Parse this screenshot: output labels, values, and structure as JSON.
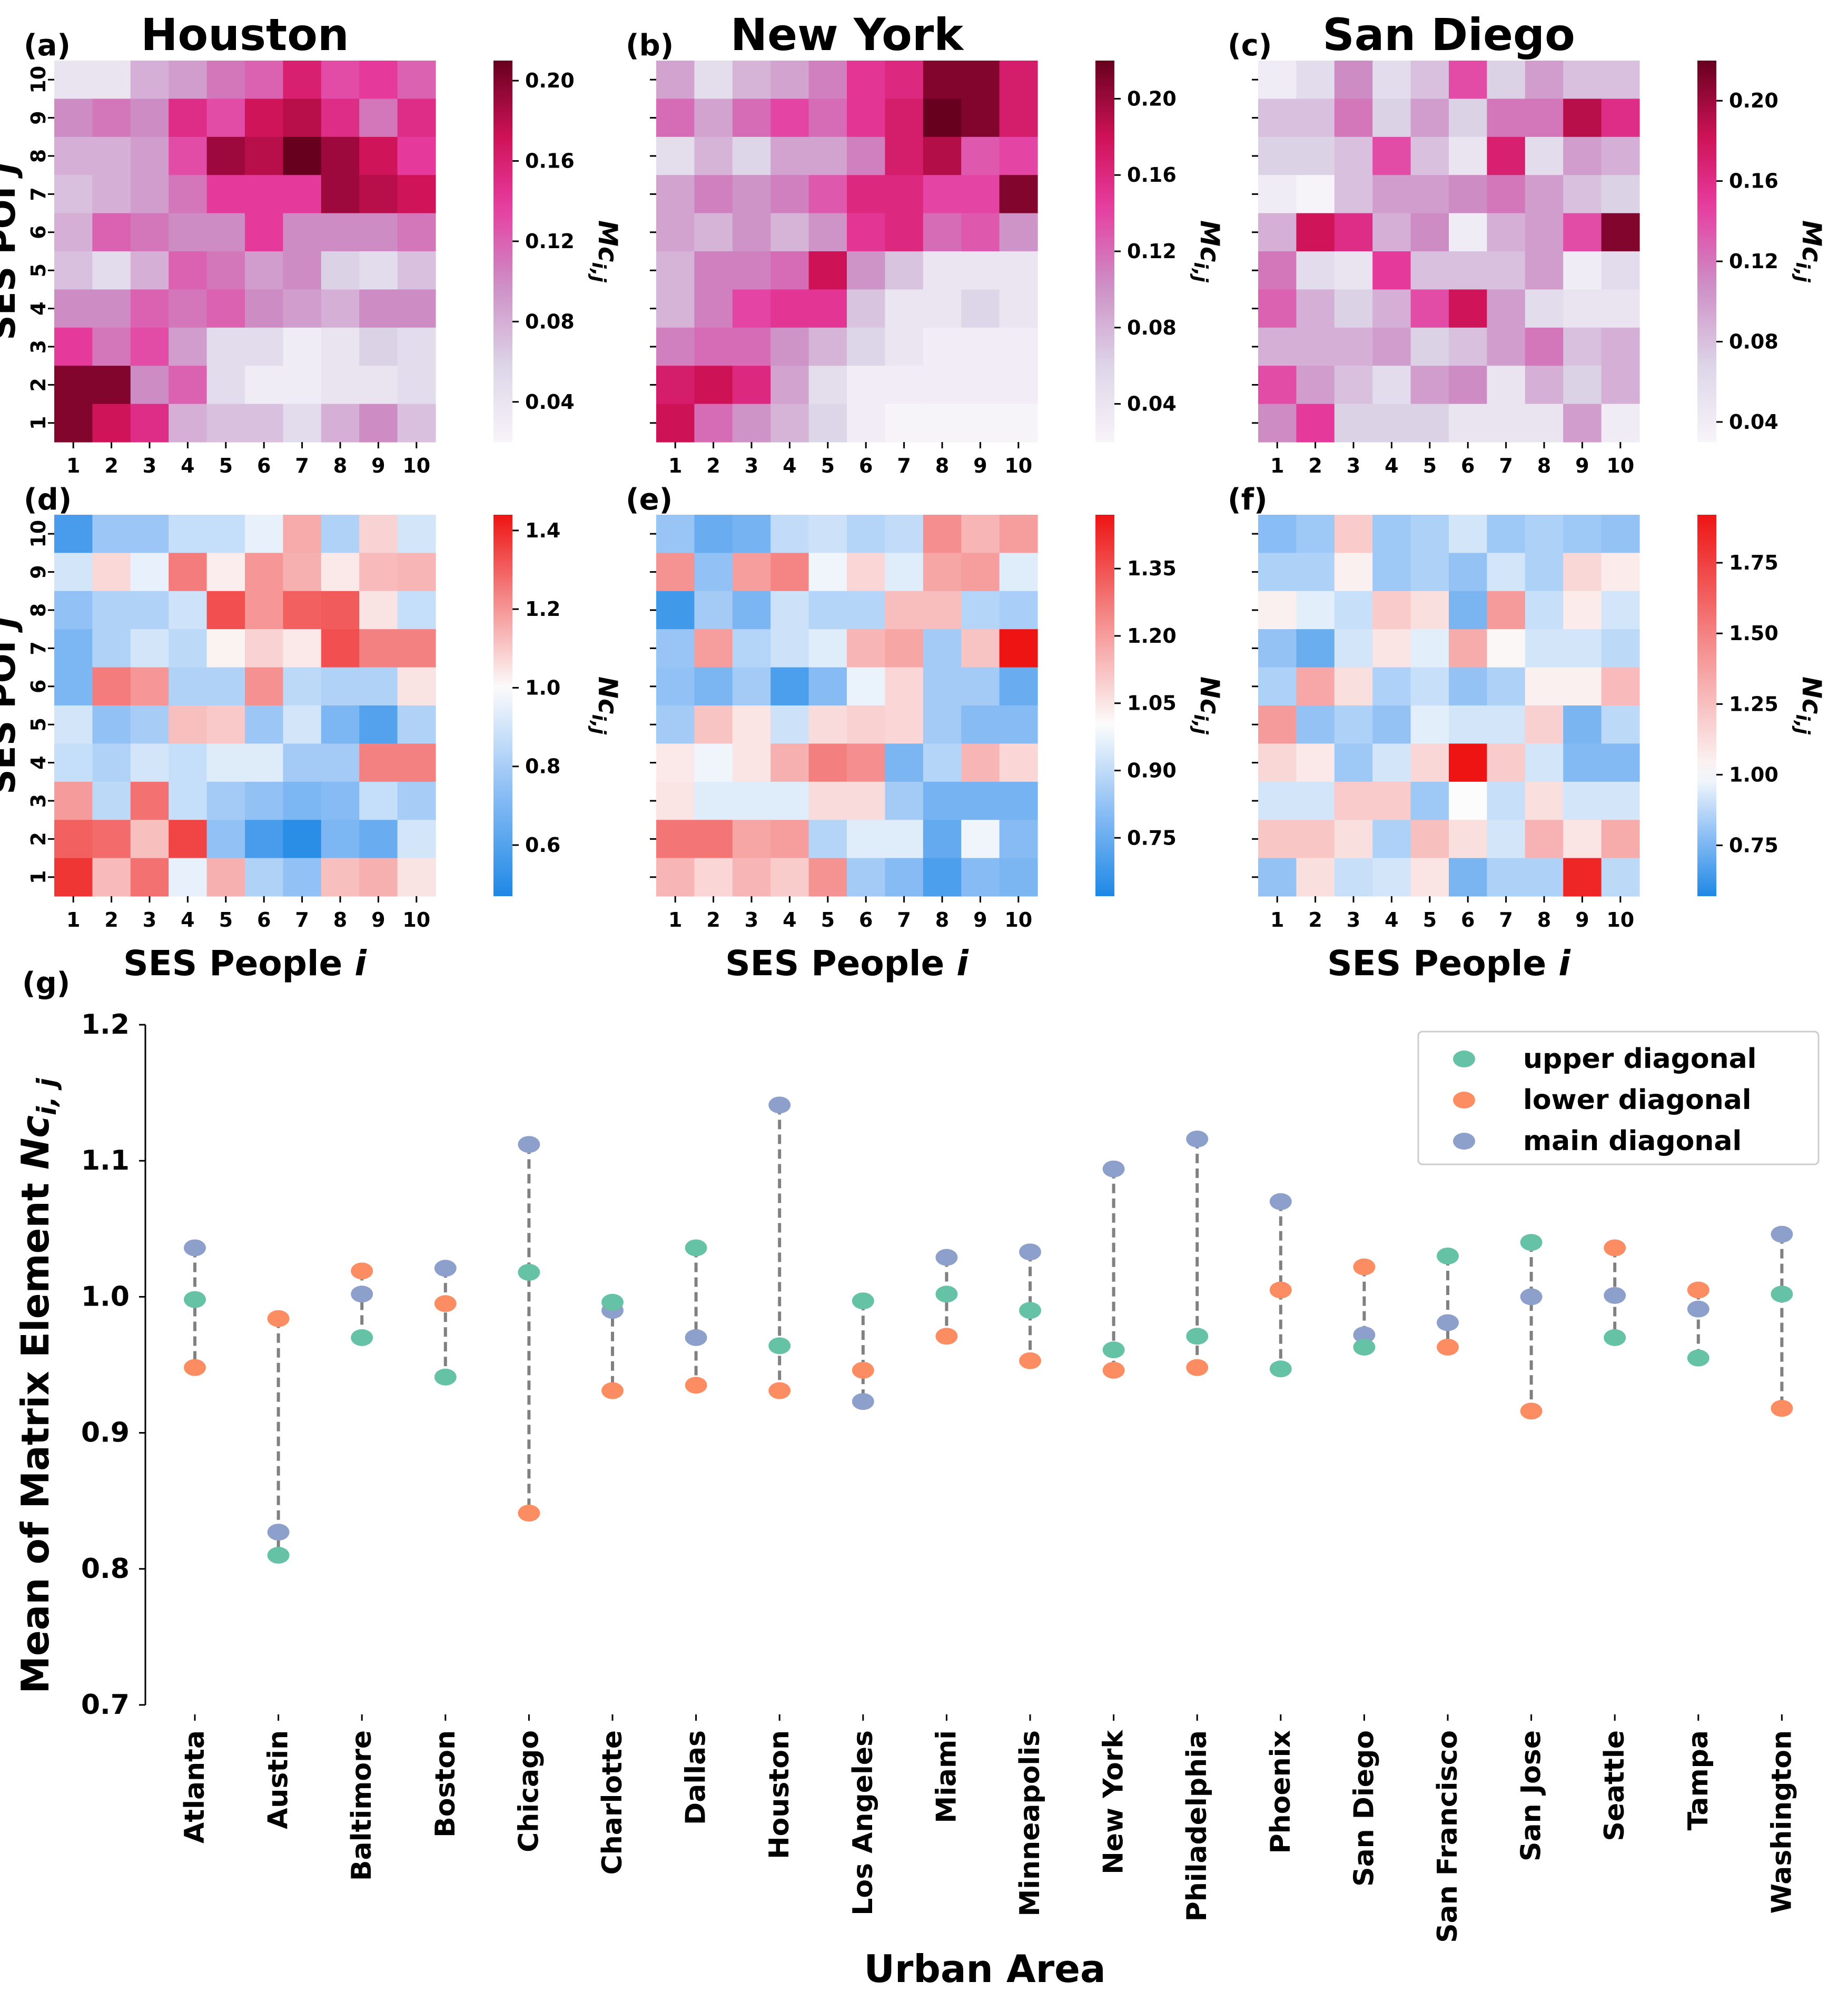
{
  "heatmaps": [
    {
      "label": "(a)",
      "city": "Houston",
      "scale": "pink",
      "cbar_label": "Mc_{i,j}",
      "vmin": 0.02,
      "vmax": 0.21,
      "cbar_ticks": [
        "0.04",
        "0.08",
        "0.12",
        "0.16",
        "0.20"
      ],
      "cbar_tick_values": [
        0.04,
        0.08,
        0.12,
        0.16,
        0.2
      ],
      "show_ylabel": true,
      "show_yticks": true,
      "rows": [
        [
          0.04,
          0.04,
          0.08,
          0.09,
          0.11,
          0.12,
          0.16,
          0.13,
          0.14,
          0.12
        ],
        [
          0.1,
          0.11,
          0.1,
          0.15,
          0.13,
          0.17,
          0.18,
          0.15,
          0.11,
          0.15
        ],
        [
          0.08,
          0.08,
          0.09,
          0.13,
          0.19,
          0.18,
          0.21,
          0.19,
          0.17,
          0.14
        ],
        [
          0.07,
          0.08,
          0.09,
          0.11,
          0.14,
          0.14,
          0.14,
          0.19,
          0.18,
          0.17
        ],
        [
          0.08,
          0.12,
          0.11,
          0.1,
          0.1,
          0.14,
          0.1,
          0.1,
          0.1,
          0.11
        ],
        [
          0.07,
          0.05,
          0.08,
          0.12,
          0.11,
          0.09,
          0.1,
          0.06,
          0.05,
          0.07
        ],
        [
          0.1,
          0.1,
          0.12,
          0.11,
          0.12,
          0.1,
          0.09,
          0.08,
          0.1,
          0.1
        ],
        [
          0.14,
          0.11,
          0.13,
          0.09,
          0.05,
          0.05,
          0.03,
          0.04,
          0.06,
          0.05
        ],
        [
          0.2,
          0.2,
          0.1,
          0.12,
          0.05,
          0.03,
          0.03,
          0.04,
          0.04,
          0.05
        ],
        [
          0.2,
          0.17,
          0.15,
          0.08,
          0.07,
          0.07,
          0.05,
          0.08,
          0.1,
          0.07
        ]
      ]
    },
    {
      "label": "(b)",
      "city": "New York",
      "scale": "pink",
      "cbar_label": "Mc_{i,j}",
      "vmin": 0.02,
      "vmax": 0.22,
      "cbar_ticks": [
        "0.04",
        "0.08",
        "0.12",
        "0.16",
        "0.20"
      ],
      "cbar_tick_values": [
        0.04,
        0.08,
        0.12,
        0.16,
        0.2
      ],
      "show_ylabel": false,
      "show_yticks": false,
      "rows": [
        [
          0.09,
          0.05,
          0.08,
          0.09,
          0.11,
          0.15,
          0.16,
          0.21,
          0.21,
          0.17
        ],
        [
          0.12,
          0.09,
          0.12,
          0.14,
          0.12,
          0.15,
          0.17,
          0.22,
          0.21,
          0.17
        ],
        [
          0.05,
          0.08,
          0.06,
          0.09,
          0.09,
          0.11,
          0.17,
          0.19,
          0.13,
          0.14
        ],
        [
          0.09,
          0.11,
          0.1,
          0.11,
          0.13,
          0.16,
          0.16,
          0.14,
          0.14,
          0.21
        ],
        [
          0.09,
          0.08,
          0.1,
          0.08,
          0.1,
          0.15,
          0.16,
          0.12,
          0.13,
          0.1
        ],
        [
          0.08,
          0.11,
          0.11,
          0.12,
          0.18,
          0.1,
          0.07,
          0.04,
          0.04,
          0.04
        ],
        [
          0.08,
          0.11,
          0.14,
          0.15,
          0.15,
          0.07,
          0.04,
          0.04,
          0.06,
          0.04
        ],
        [
          0.11,
          0.12,
          0.12,
          0.1,
          0.08,
          0.06,
          0.04,
          0.03,
          0.03,
          0.03
        ],
        [
          0.17,
          0.18,
          0.16,
          0.09,
          0.05,
          0.03,
          0.03,
          0.03,
          0.03,
          0.03
        ],
        [
          0.18,
          0.12,
          0.1,
          0.08,
          0.06,
          0.03,
          0.02,
          0.02,
          0.02,
          0.02
        ]
      ]
    },
    {
      "label": "(c)",
      "city": "San Diego",
      "scale": "pink",
      "cbar_label": "Mc_{i,j}",
      "vmin": 0.03,
      "vmax": 0.22,
      "cbar_ticks": [
        "0.04",
        "0.08",
        "0.12",
        "0.16",
        "0.20"
      ],
      "cbar_tick_values": [
        0.04,
        0.08,
        0.12,
        0.16,
        0.2
      ],
      "show_ylabel": false,
      "show_yticks": false,
      "rows": [
        [
          0.04,
          0.06,
          0.11,
          0.06,
          0.08,
          0.14,
          0.07,
          0.1,
          0.08,
          0.08
        ],
        [
          0.08,
          0.08,
          0.12,
          0.07,
          0.1,
          0.07,
          0.12,
          0.12,
          0.19,
          0.16
        ],
        [
          0.07,
          0.07,
          0.08,
          0.14,
          0.08,
          0.05,
          0.17,
          0.06,
          0.1,
          0.09
        ],
        [
          0.04,
          0.03,
          0.08,
          0.1,
          0.1,
          0.11,
          0.12,
          0.1,
          0.08,
          0.07
        ],
        [
          0.09,
          0.18,
          0.16,
          0.09,
          0.11,
          0.04,
          0.09,
          0.1,
          0.14,
          0.21
        ],
        [
          0.12,
          0.06,
          0.05,
          0.15,
          0.08,
          0.08,
          0.08,
          0.1,
          0.04,
          0.06
        ],
        [
          0.13,
          0.09,
          0.07,
          0.09,
          0.14,
          0.18,
          0.1,
          0.06,
          0.05,
          0.05
        ],
        [
          0.09,
          0.09,
          0.09,
          0.1,
          0.07,
          0.08,
          0.1,
          0.12,
          0.08,
          0.09
        ],
        [
          0.14,
          0.1,
          0.08,
          0.06,
          0.1,
          0.11,
          0.05,
          0.09,
          0.07,
          0.09
        ],
        [
          0.11,
          0.15,
          0.07,
          0.07,
          0.07,
          0.05,
          0.05,
          0.05,
          0.1,
          0.04
        ]
      ]
    },
    {
      "label": "(d)",
      "city": "",
      "scale": "diverging",
      "cbar_label": "Nc_{i,j}",
      "vmin": 0.47,
      "vmax": 1.44,
      "vcenter": 1.0,
      "cbar_ticks": [
        "0.6",
        "0.8",
        "1.0",
        "1.2",
        "1.4"
      ],
      "cbar_tick_values": [
        0.6,
        0.8,
        1.0,
        1.2,
        1.4
      ],
      "show_ylabel": true,
      "show_yticks": true,
      "rows": [
        [
          0.57,
          0.77,
          0.77,
          0.87,
          0.87,
          0.95,
          1.16,
          0.82,
          1.08,
          0.9
        ],
        [
          0.9,
          1.07,
          0.95,
          1.25,
          1.03,
          1.2,
          1.15,
          1.04,
          1.13,
          1.14
        ],
        [
          0.75,
          0.82,
          0.82,
          0.89,
          1.33,
          1.2,
          1.3,
          1.31,
          1.05,
          0.87
        ],
        [
          0.7,
          0.82,
          0.9,
          0.85,
          1.02,
          1.08,
          1.04,
          1.33,
          1.24,
          1.24
        ],
        [
          0.7,
          1.25,
          1.2,
          0.82,
          0.82,
          1.21,
          0.85,
          0.82,
          0.82,
          1.05
        ],
        [
          0.9,
          0.75,
          0.8,
          1.12,
          1.1,
          0.77,
          0.9,
          0.7,
          0.6,
          0.82
        ],
        [
          0.87,
          0.82,
          0.9,
          0.87,
          0.93,
          0.93,
          0.79,
          0.79,
          1.24,
          1.24
        ],
        [
          1.19,
          0.85,
          1.27,
          0.87,
          0.79,
          0.75,
          0.7,
          0.72,
          0.87,
          0.8
        ],
        [
          1.3,
          1.28,
          1.12,
          1.35,
          0.75,
          0.57,
          0.5,
          0.7,
          0.65,
          0.9
        ],
        [
          1.38,
          1.13,
          1.27,
          0.95,
          1.15,
          0.82,
          0.75,
          1.12,
          1.15,
          1.05
        ]
      ]
    },
    {
      "label": "(e)",
      "city": "",
      "scale": "diverging",
      "cbar_label": "Nc_{i,j}",
      "vmin": 0.62,
      "vmax": 1.47,
      "vcenter": 1.0,
      "cbar_ticks": [
        "0.75",
        "0.90",
        "1.05",
        "1.20",
        "1.35"
      ],
      "cbar_tick_values": [
        0.75,
        0.9,
        1.05,
        1.2,
        1.35
      ],
      "show_ylabel": false,
      "show_yticks": false,
      "rows": [
        [
          0.83,
          0.75,
          0.77,
          0.9,
          0.92,
          0.88,
          0.9,
          1.23,
          1.15,
          1.2
        ],
        [
          1.22,
          0.82,
          1.2,
          1.25,
          0.98,
          1.08,
          0.95,
          1.18,
          1.2,
          0.95
        ],
        [
          0.68,
          0.85,
          0.78,
          0.92,
          0.88,
          0.88,
          1.13,
          1.13,
          0.88,
          0.86
        ],
        [
          0.83,
          1.2,
          0.88,
          0.92,
          0.95,
          1.15,
          1.18,
          0.85,
          1.12,
          1.47
        ],
        [
          0.82,
          0.78,
          0.85,
          0.7,
          0.8,
          0.97,
          1.08,
          0.85,
          0.85,
          0.75
        ],
        [
          0.85,
          1.12,
          1.05,
          0.92,
          1.07,
          1.09,
          1.08,
          0.85,
          0.8,
          0.8
        ],
        [
          1.04,
          0.98,
          1.05,
          1.16,
          1.26,
          1.23,
          0.78,
          0.88,
          1.15,
          1.08
        ],
        [
          1.05,
          0.95,
          0.95,
          0.95,
          1.07,
          1.07,
          0.85,
          0.77,
          0.77,
          0.77
        ],
        [
          1.28,
          1.28,
          1.18,
          1.2,
          0.88,
          0.95,
          0.95,
          0.74,
          0.98,
          0.8
        ],
        [
          1.15,
          1.08,
          1.15,
          1.1,
          1.22,
          0.85,
          0.8,
          0.7,
          0.8,
          0.78
        ]
      ]
    },
    {
      "label": "(f)",
      "city": "",
      "scale": "diverging",
      "cbar_label": "Nc_{i,j}",
      "vmin": 0.57,
      "vmax": 1.92,
      "vcenter": 1.0,
      "cbar_ticks": [
        "0.75",
        "1.00",
        "1.25",
        "1.50",
        "1.75"
      ],
      "cbar_tick_values": [
        0.75,
        1.0,
        1.25,
        1.5,
        1.75
      ],
      "show_ylabel": false,
      "show_yticks": false,
      "rows": [
        [
          0.78,
          0.82,
          1.2,
          0.82,
          0.85,
          0.92,
          0.82,
          0.85,
          0.82,
          0.8
        ],
        [
          0.85,
          0.85,
          1.05,
          0.82,
          0.85,
          0.8,
          0.92,
          0.85,
          1.15,
          1.07
        ],
        [
          1.05,
          0.95,
          0.9,
          1.2,
          1.12,
          0.75,
          1.4,
          0.9,
          1.07,
          0.92
        ],
        [
          0.8,
          0.72,
          0.92,
          1.1,
          0.95,
          1.33,
          1.02,
          0.92,
          0.92,
          0.88
        ],
        [
          0.85,
          1.35,
          1.12,
          0.85,
          0.9,
          0.8,
          0.85,
          1.05,
          1.05,
          1.27
        ],
        [
          1.4,
          0.8,
          0.85,
          0.8,
          0.95,
          0.92,
          0.92,
          1.18,
          0.75,
          0.88
        ],
        [
          1.15,
          1.08,
          0.82,
          0.92,
          1.15,
          1.92,
          1.2,
          0.92,
          0.77,
          0.77
        ],
        [
          0.92,
          0.92,
          1.2,
          1.2,
          0.82,
          1.0,
          0.9,
          1.12,
          0.92,
          0.92
        ],
        [
          1.22,
          1.22,
          1.12,
          0.85,
          1.25,
          1.12,
          0.92,
          1.3,
          1.1,
          1.33
        ],
        [
          0.8,
          1.12,
          0.9,
          0.92,
          1.1,
          0.75,
          0.85,
          0.85,
          1.85,
          0.88
        ]
      ]
    }
  ],
  "x_ticks": [
    "1",
    "2",
    "3",
    "4",
    "5",
    "6",
    "7",
    "8",
    "9",
    "10"
  ],
  "y_ticks": [
    "1",
    "2",
    "3",
    "4",
    "5",
    "6",
    "7",
    "8",
    "9",
    "10"
  ],
  "heatmap_ylabel_prefix": "SES POI ",
  "heatmap_ylabel_var": "j",
  "heatmap_xlabel_prefix": "SES People ",
  "heatmap_xlabel_var": "i",
  "chart_data": {
    "type": "scatter",
    "panel_label": "(g)",
    "title": "",
    "xlabel": "Urban Area",
    "ylabel_prefix": "Mean of Matrix Element ",
    "ylabel_var": "Nc",
    "ylabel_sub": "i, j",
    "ylim": [
      0.7,
      1.2
    ],
    "yticks": [
      "0.7",
      "0.8",
      "0.9",
      "1.0",
      "1.1",
      "1.2"
    ],
    "ytick_values": [
      0.7,
      0.8,
      0.9,
      1.0,
      1.1,
      1.2
    ],
    "categories": [
      "Atlanta",
      "Austin",
      "Baltimore",
      "Boston",
      "Chicago",
      "Charlotte",
      "Dallas",
      "Houston",
      "Los Angeles",
      "Miami",
      "Minneapolis",
      "New York",
      "Philadelphia",
      "Phoenix",
      "San Diego",
      "San Francisco",
      "San Jose",
      "Seattle",
      "Tampa",
      "Washington"
    ],
    "series": [
      {
        "name": "upper diagonal",
        "color": "#66c2a5",
        "values": [
          0.998,
          0.81,
          0.97,
          0.941,
          1.018,
          0.996,
          1.036,
          0.964,
          0.997,
          1.002,
          0.99,
          0.961,
          0.971,
          0.947,
          0.963,
          1.03,
          1.04,
          0.97,
          0.955,
          1.002
        ]
      },
      {
        "name": "lower diagonal",
        "color": "#fc8d62",
        "values": [
          0.948,
          0.984,
          1.019,
          0.995,
          0.841,
          0.931,
          0.935,
          0.931,
          0.946,
          0.971,
          0.953,
          0.946,
          0.948,
          1.005,
          1.022,
          0.963,
          0.916,
          1.036,
          1.005,
          0.918
        ]
      },
      {
        "name": "main diagonal",
        "color": "#8da0cb",
        "values": [
          1.036,
          0.827,
          1.002,
          1.021,
          1.112,
          0.99,
          0.97,
          1.141,
          0.923,
          1.029,
          1.033,
          1.094,
          1.116,
          1.07,
          0.972,
          0.981,
          1.0,
          1.001,
          0.991,
          1.046
        ]
      }
    ],
    "legend_location": "top-right"
  }
}
